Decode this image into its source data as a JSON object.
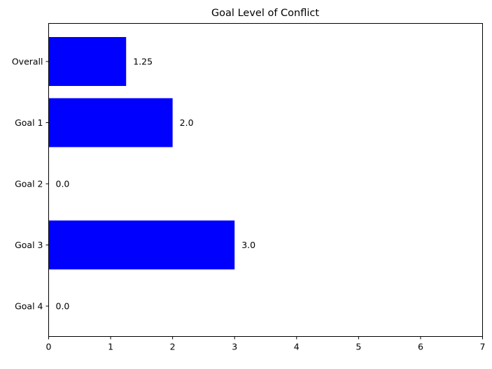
{
  "chart_data": {
    "type": "bar",
    "orientation": "horizontal",
    "title": "Goal Level of Conflict",
    "xlabel": "",
    "ylabel": "",
    "categories": [
      "Overall",
      "Goal 1",
      "Goal 2",
      "Goal 3",
      "Goal 4"
    ],
    "values": [
      1.25,
      2.0,
      0.0,
      3.0,
      0.0
    ],
    "value_labels": [
      "1.25",
      "2.0",
      "0.0",
      "3.0",
      "0.0"
    ],
    "xlim": [
      0,
      7
    ],
    "x_ticks": [
      0,
      1,
      2,
      3,
      4,
      5,
      6,
      7
    ],
    "x_tick_labels": [
      "0",
      "1",
      "2",
      "3",
      "4",
      "5",
      "6",
      "7"
    ],
    "bar_color": "#0000ff",
    "grid": false,
    "legend": "none"
  }
}
